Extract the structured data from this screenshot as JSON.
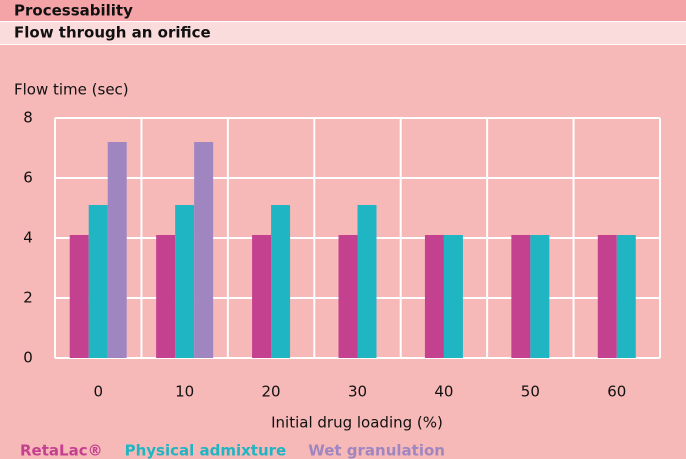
{
  "header": {
    "title": "Processability",
    "subtitle": "Flow through an orifice"
  },
  "chart_data": {
    "type": "bar",
    "y_label": "Flow time (sec)",
    "x_label": "Initial drug loading (%)",
    "categories": [
      "0",
      "10",
      "20",
      "30",
      "40",
      "50",
      "60"
    ],
    "series": [
      {
        "name": "RetaLac®",
        "color": "#c4418f",
        "values": [
          4.1,
          4.1,
          4.1,
          4.1,
          4.1,
          4.1,
          4.1
        ]
      },
      {
        "name": "Physical admixture",
        "color": "#1fb5c2",
        "values": [
          5.1,
          5.1,
          5.1,
          5.1,
          4.1,
          4.1,
          4.1
        ]
      },
      {
        "name": "Wet granulation",
        "color": "#a086c0",
        "values": [
          7.2,
          7.2,
          null,
          null,
          null,
          null,
          null
        ]
      }
    ],
    "ylim": [
      0,
      8
    ],
    "yticks": [
      0,
      2,
      4,
      6,
      8
    ],
    "grid": true
  }
}
